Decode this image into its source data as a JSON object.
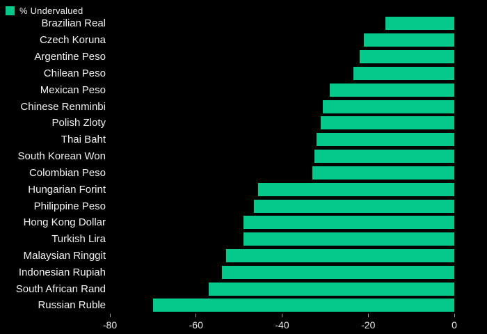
{
  "legend": {
    "label": "% Undervalued"
  },
  "colors": {
    "background": "#000000",
    "bar": "#04c98a",
    "label_text": "#f2f2f2",
    "axis_text": "#e8e8e8",
    "tick": "#9a9a9a"
  },
  "chart_data": {
    "type": "bar",
    "orientation": "horizontal",
    "title": "% Undervalued",
    "categories": [
      "Brazilian Real",
      "Czech Koruna",
      "Argentine Peso",
      "Chilean Peso",
      "Mexican Peso",
      "Chinese Renminbi",
      "Polish Zloty",
      "Thai Baht",
      "South Korean Won",
      "Colombian Peso",
      "Hungarian Forint",
      "Philippine Peso",
      "Hong Kong Dollar",
      "Turkish Lira",
      "Malaysian Ringgit",
      "Indonesian Rupiah",
      "South African Rand",
      "Russian Ruble"
    ],
    "values": [
      -16,
      -21,
      -22,
      -23.5,
      -29,
      -30.5,
      -31,
      -32,
      -32.5,
      -33,
      -45.5,
      -46.5,
      -49,
      -49,
      -53,
      -54,
      -57,
      -70
    ],
    "xlabel": "",
    "ylabel": "",
    "xlim": [
      -80,
      0
    ],
    "x_ticks": [
      "-80",
      "-60",
      "-40",
      "-20",
      "0"
    ],
    "x_tick_values": [
      -80,
      -60,
      -40,
      -20,
      0
    ],
    "grid": false,
    "legend_position": "top-left"
  }
}
